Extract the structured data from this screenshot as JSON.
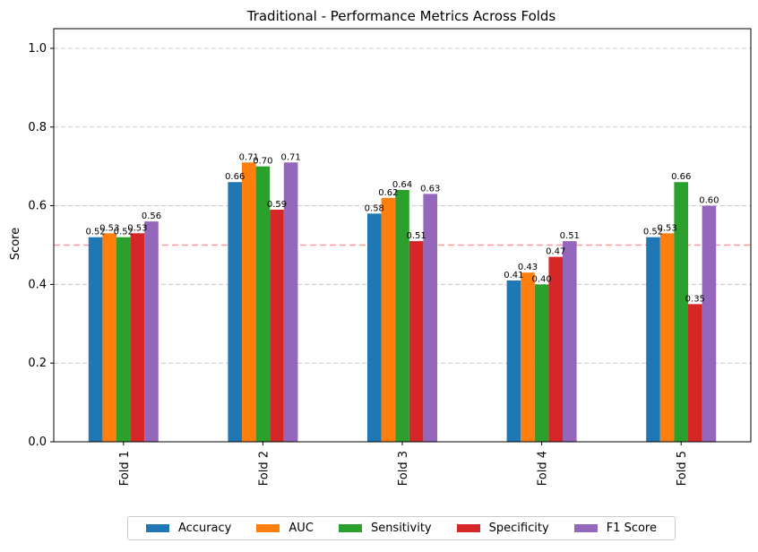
{
  "chart_data": {
    "type": "bar",
    "title": "Traditional - Performance Metrics Across Folds",
    "xlabel": "",
    "ylabel": "Score",
    "ylim": [
      0,
      1.05
    ],
    "yticks": [
      "0.0",
      "0.2",
      "0.4",
      "0.6",
      "0.8",
      "1.0"
    ],
    "grid": true,
    "reference_line": {
      "y": 0.5,
      "color": "#ff9999",
      "style": "dashed"
    },
    "categories": [
      "Fold 1",
      "Fold 2",
      "Fold 3",
      "Fold 4",
      "Fold 5"
    ],
    "series": [
      {
        "name": "Accuracy",
        "color": "#1f77b4",
        "values": [
          0.52,
          0.66,
          0.58,
          0.41,
          0.52
        ],
        "labels": [
          "0.52",
          "0.66",
          "0.58",
          "0.41",
          "0.52"
        ]
      },
      {
        "name": "AUC",
        "color": "#ff7f0e",
        "values": [
          0.53,
          0.71,
          0.62,
          0.43,
          0.53
        ],
        "labels": [
          "0.53",
          "0.71",
          "0.62",
          "0.43",
          "0.53"
        ]
      },
      {
        "name": "Sensitivity",
        "color": "#2ca02c",
        "values": [
          0.52,
          0.7,
          0.64,
          0.4,
          0.66
        ],
        "labels": [
          "0.52",
          "0.70",
          "0.64",
          "0.40",
          "0.66"
        ]
      },
      {
        "name": "Specificity",
        "color": "#d62728",
        "values": [
          0.53,
          0.59,
          0.51,
          0.47,
          0.35
        ],
        "labels": [
          "0.53",
          "0.59",
          "0.51",
          "0.47",
          "0.35"
        ]
      },
      {
        "name": "F1 Score",
        "color": "#9467bd",
        "values": [
          0.56,
          0.71,
          0.63,
          0.51,
          0.6
        ],
        "labels": [
          "0.56",
          "0.71",
          "0.63",
          "0.51",
          "0.60"
        ]
      }
    ],
    "legend_position": "bottom-center"
  }
}
